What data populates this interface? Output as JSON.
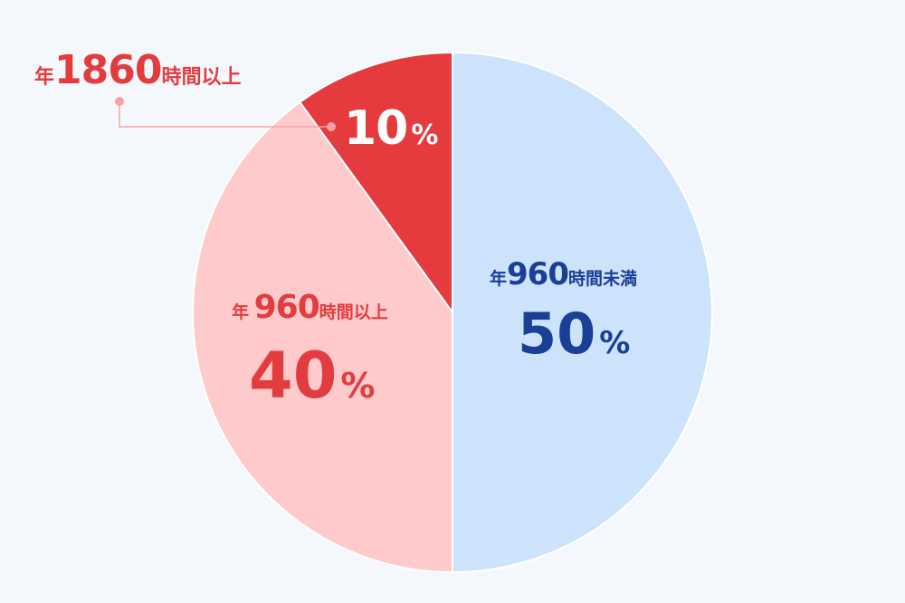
{
  "chart_data": {
    "type": "pie",
    "start_angle": "top",
    "direction": "clockwise",
    "slices": [
      {
        "label_prefix": "年",
        "label_number": "960",
        "label_suffix": "時間未満",
        "value": 50,
        "value_text": "50",
        "color": "#cde2fb",
        "text_color": "#1a3f97"
      },
      {
        "label_prefix": "年",
        "label_number": "960",
        "label_suffix": "時間以上",
        "value": 40,
        "value_text": "40",
        "color": "#fecacb",
        "text_color": "#e33c3f"
      },
      {
        "label_prefix": "年",
        "label_number": "1860",
        "label_suffix": "時間以上",
        "value": 10,
        "value_text": "10",
        "color": "#e53b3e",
        "text_color": "#ffffff",
        "label_color": "#e33c3f",
        "callout_color": "#f5a3a6"
      }
    ],
    "percent_sign": "%",
    "background": "#f4f8fd"
  }
}
